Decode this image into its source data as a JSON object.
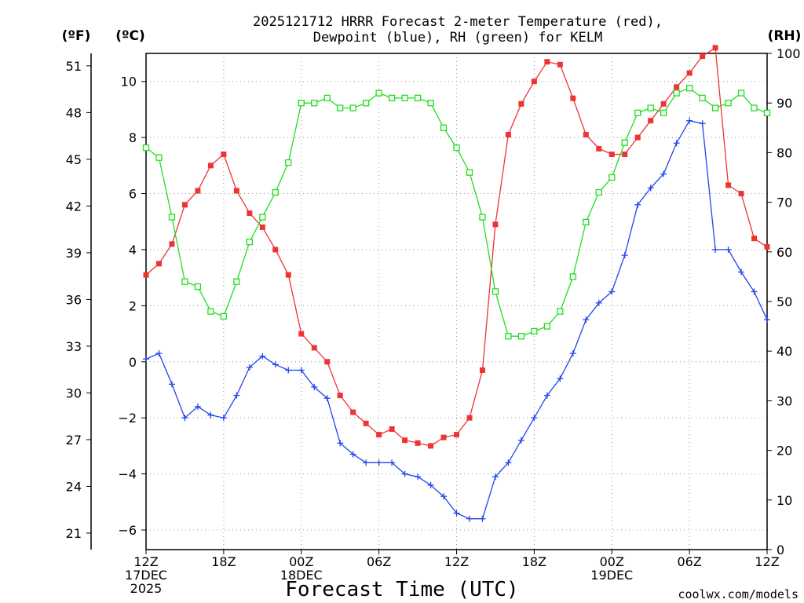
{
  "chart_data": {
    "type": "line",
    "title": "2025121712 HRRR Forecast 2-meter Temperature (red),\nDewpoint (blue), RH (green) for KELM",
    "title_lines": [
      "2025121712 HRRR Forecast 2-meter Temperature (red),",
      "Dewpoint (blue), RH (green) for KELM"
    ],
    "xlabel": "Forecast Time (UTC)",
    "credit": "coolwx.com/models",
    "axis_units": {
      "fahrenheit": "(ºF)",
      "celsius": "(ºC)",
      "rh": "(RH)"
    },
    "colors": {
      "temperature": "#ee3333",
      "dewpoint": "#2244ee",
      "rh": "#22dd22",
      "grid": "#999999"
    },
    "x_hours": [
      0,
      1,
      2,
      3,
      4,
      5,
      6,
      7,
      8,
      9,
      10,
      11,
      12,
      13,
      14,
      15,
      16,
      17,
      18,
      19,
      20,
      21,
      22,
      23,
      24,
      25,
      26,
      27,
      28,
      29,
      30,
      31,
      32,
      33,
      34,
      35,
      36,
      37,
      38,
      39,
      40,
      41,
      42,
      43,
      44,
      45,
      46,
      47,
      48
    ],
    "x_ticks": [
      {
        "hour": 0,
        "lines": [
          "12Z",
          "17DEC",
          "2025"
        ]
      },
      {
        "hour": 6,
        "lines": [
          "18Z"
        ]
      },
      {
        "hour": 12,
        "lines": [
          "00Z",
          "18DEC"
        ]
      },
      {
        "hour": 18,
        "lines": [
          "06Z"
        ]
      },
      {
        "hour": 24,
        "lines": [
          "12Z"
        ]
      },
      {
        "hour": 30,
        "lines": [
          "18Z"
        ]
      },
      {
        "hour": 36,
        "lines": [
          "00Z",
          "19DEC"
        ]
      },
      {
        "hour": 42,
        "lines": [
          "06Z"
        ]
      },
      {
        "hour": 48,
        "lines": [
          "12Z"
        ]
      }
    ],
    "celsius_ylim": [
      -6.7,
      11.0
    ],
    "celsius_ticks": [
      "-6",
      "-4",
      "-2",
      "0",
      "2",
      "4",
      "6",
      "8",
      "10"
    ],
    "fahrenheit_ticks": [
      "21",
      "24",
      "27",
      "30",
      "33",
      "36",
      "39",
      "42",
      "45",
      "48",
      "51"
    ],
    "rh_ylim": [
      0,
      100
    ],
    "rh_ticks": [
      "0",
      "10",
      "20",
      "30",
      "40",
      "50",
      "60",
      "70",
      "80",
      "90",
      "100"
    ],
    "series": [
      {
        "name": "Temperature",
        "unit": "C",
        "marker": "filled-square",
        "values": [
          3.1,
          3.5,
          4.2,
          5.6,
          6.1,
          7.0,
          7.4,
          6.1,
          5.3,
          4.8,
          4.0,
          3.1,
          1.0,
          0.5,
          0.0,
          -1.2,
          -1.8,
          -2.2,
          -2.6,
          -2.4,
          -2.8,
          -2.9,
          -3.0,
          -2.7,
          -2.6,
          -2.0,
          -0.3,
          4.9,
          8.1,
          9.2,
          10.0,
          10.7,
          10.6,
          9.4,
          8.1,
          7.6,
          7.4,
          7.4,
          8.0,
          8.6,
          9.2,
          9.8,
          10.3,
          10.9,
          11.2,
          6.3,
          6.0,
          4.4,
          4.1
        ]
      },
      {
        "name": "Dewpoint",
        "unit": "C",
        "marker": "plus",
        "values": [
          0.1,
          0.3,
          -0.8,
          -2.0,
          -1.6,
          -1.9,
          -2.0,
          -1.2,
          -0.2,
          0.2,
          -0.1,
          -0.3,
          -0.3,
          -0.9,
          -1.3,
          -2.9,
          -3.3,
          -3.6,
          -3.6,
          -3.6,
          -4.0,
          -4.1,
          -4.4,
          -4.8,
          -5.4,
          -5.6,
          -5.6,
          -4.1,
          -3.6,
          -2.8,
          -2.0,
          -1.2,
          -0.6,
          0.3,
          1.5,
          2.1,
          2.5,
          3.8,
          5.6,
          6.2,
          6.7,
          7.8,
          8.6,
          8.5,
          4.0,
          4.0,
          3.2,
          2.5,
          1.5
        ]
      },
      {
        "name": "RH",
        "unit": "%",
        "marker": "open-square",
        "values": [
          81,
          79,
          67,
          54,
          53,
          48,
          47,
          54,
          62,
          67,
          72,
          78,
          90,
          90,
          91,
          89,
          89,
          90,
          92,
          91,
          91,
          91,
          90,
          85,
          81,
          76,
          67,
          52,
          43,
          43,
          44,
          45,
          48,
          55,
          66,
          72,
          75,
          82,
          88,
          89,
          88,
          92,
          93,
          91,
          89,
          90,
          92,
          89,
          88
        ]
      }
    ]
  }
}
